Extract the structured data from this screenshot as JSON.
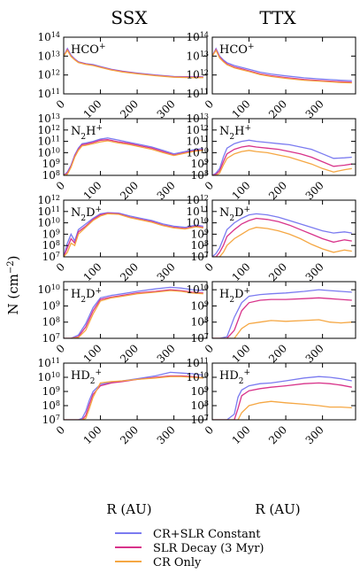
{
  "figure": {
    "column_titles": [
      "SSX",
      "TTX"
    ],
    "ylabel_main": "N (cm",
    "ylabel_exp": "−2",
    "ylabel_close": ")",
    "xlabel": "R (AU)"
  },
  "legend": [
    {
      "label": "CR+SLR Constant",
      "color": "#7b7bf0"
    },
    {
      "label": "SLR Decay (3 Myr)",
      "color": "#d8338a"
    },
    {
      "label": "CR Only",
      "color": "#f5a743"
    }
  ],
  "chart_data": [
    {
      "type": "line",
      "title": "SSX",
      "molecule": "HCO+",
      "label_main": "HCO",
      "label_sub": "",
      "label_sup": "+",
      "x": [
        0,
        10,
        20,
        30,
        40,
        60,
        80,
        100,
        130,
        160,
        200,
        250,
        300,
        350,
        380
      ],
      "xlim": [
        0,
        390
      ],
      "xticks": [
        0,
        100,
        200,
        300
      ],
      "ylim_log10": [
        11,
        14
      ],
      "yticks_log10": [
        11,
        12,
        13,
        14
      ],
      "yscale": "log",
      "series": [
        {
          "name": "CR+SLR Constant",
          "log10_values": [
            13.0,
            13.4,
            13.05,
            12.85,
            12.7,
            12.6,
            12.55,
            12.45,
            12.3,
            12.2,
            12.1,
            12.0,
            11.92,
            11.9,
            11.9
          ]
        },
        {
          "name": "SLR Decay (3 Myr)",
          "log10_values": [
            13.0,
            13.35,
            13.0,
            12.82,
            12.68,
            12.58,
            12.52,
            12.42,
            12.28,
            12.18,
            12.08,
            11.98,
            11.9,
            11.88,
            11.88
          ]
        },
        {
          "name": "CR Only",
          "log10_values": [
            13.0,
            13.3,
            12.98,
            12.8,
            12.66,
            12.56,
            12.5,
            12.4,
            12.26,
            12.16,
            12.06,
            11.96,
            11.88,
            11.86,
            11.86
          ]
        }
      ]
    },
    {
      "type": "line",
      "title": "TTX",
      "molecule": "HCO+",
      "label_main": "HCO",
      "label_sub": "",
      "label_sup": "+",
      "x": [
        0,
        10,
        20,
        30,
        40,
        60,
        80,
        100,
        130,
        160,
        200,
        250,
        300,
        350,
        380
      ],
      "xlim": [
        0,
        390
      ],
      "xticks": [
        0,
        100,
        200,
        300
      ],
      "ylim_log10": [
        11,
        14
      ],
      "yticks_log10": [
        11,
        12,
        13,
        14
      ],
      "yscale": "log",
      "series": [
        {
          "name": "CR+SLR Constant",
          "log10_values": [
            13.0,
            13.4,
            13.0,
            12.8,
            12.65,
            12.5,
            12.4,
            12.3,
            12.15,
            12.05,
            11.95,
            11.85,
            11.78,
            11.72,
            11.7
          ]
        },
        {
          "name": "SLR Decay (3 Myr)",
          "log10_values": [
            13.0,
            13.35,
            12.95,
            12.74,
            12.58,
            12.42,
            12.32,
            12.22,
            12.06,
            11.96,
            11.86,
            11.76,
            11.7,
            11.64,
            11.62
          ]
        },
        {
          "name": "CR Only",
          "log10_values": [
            13.0,
            13.3,
            12.9,
            12.7,
            12.54,
            12.38,
            12.28,
            12.18,
            12.02,
            11.92,
            11.82,
            11.72,
            11.66,
            11.6,
            11.58
          ]
        }
      ]
    },
    {
      "type": "line",
      "title": "SSX",
      "molecule": "N2H+",
      "label_main": "N",
      "label_sub": "2",
      "label_sup": "+",
      "label_after": "H",
      "x": [
        0,
        10,
        20,
        30,
        40,
        50,
        60,
        80,
        100,
        120,
        150,
        180,
        210,
        240,
        270,
        300,
        330,
        360,
        380
      ],
      "xlim": [
        0,
        390
      ],
      "xticks": [
        0,
        100,
        200,
        300
      ],
      "ylim_log10": [
        8,
        13
      ],
      "yticks_log10": [
        8,
        9,
        10,
        11,
        12,
        13
      ],
      "yscale": "log",
      "series": [
        {
          "name": "CR+SLR Constant",
          "log10_values": [
            8.0,
            8.3,
            8.9,
            9.8,
            10.4,
            10.8,
            10.85,
            11.0,
            11.2,
            11.3,
            11.1,
            10.9,
            10.7,
            10.5,
            10.2,
            9.9,
            10.1,
            10.3,
            10.35
          ]
        },
        {
          "name": "SLR Decay (3 Myr)",
          "log10_values": [
            8.0,
            8.2,
            8.8,
            9.7,
            10.3,
            10.7,
            10.75,
            10.9,
            11.1,
            11.15,
            10.95,
            10.8,
            10.6,
            10.4,
            10.1,
            9.8,
            10.0,
            10.2,
            10.25
          ]
        },
        {
          "name": "CR Only",
          "log10_values": [
            8.0,
            8.1,
            8.7,
            9.6,
            10.2,
            10.6,
            10.65,
            10.8,
            10.95,
            11.05,
            10.85,
            10.7,
            10.5,
            10.3,
            10.0,
            9.75,
            9.95,
            10.15,
            10.2
          ]
        }
      ]
    },
    {
      "type": "line",
      "title": "TTX",
      "molecule": "N2H+",
      "label_main": "N",
      "label_sub": "2",
      "label_sup": "+",
      "label_after": "H",
      "x": [
        0,
        10,
        20,
        30,
        40,
        60,
        80,
        100,
        120,
        150,
        180,
        210,
        240,
        270,
        300,
        330,
        360,
        380
      ],
      "xlim": [
        0,
        390
      ],
      "xticks": [
        0,
        100,
        200,
        300
      ],
      "ylim_log10": [
        8,
        13
      ],
      "yticks_log10": [
        8,
        9,
        10,
        11,
        12,
        13
      ],
      "yscale": "log",
      "series": [
        {
          "name": "CR+SLR Constant",
          "log10_values": [
            8.0,
            8.2,
            8.6,
            9.6,
            10.4,
            10.8,
            11.0,
            11.1,
            11.0,
            10.9,
            10.8,
            10.7,
            10.5,
            10.3,
            9.9,
            9.5,
            9.55,
            9.6
          ]
        },
        {
          "name": "SLR Decay (3 Myr)",
          "log10_values": [
            8.0,
            8.1,
            8.4,
            9.2,
            9.9,
            10.3,
            10.5,
            10.6,
            10.5,
            10.4,
            10.3,
            10.1,
            9.9,
            9.6,
            9.2,
            8.8,
            8.9,
            9.0
          ]
        },
        {
          "name": "CR Only",
          "log10_values": [
            8.0,
            8.0,
            8.2,
            8.9,
            9.5,
            9.9,
            10.1,
            10.2,
            10.1,
            10.0,
            9.8,
            9.6,
            9.3,
            9.0,
            8.6,
            8.3,
            8.5,
            8.6
          ]
        }
      ]
    },
    {
      "type": "line",
      "title": "SSX",
      "molecule": "N2D+",
      "label_main": "N",
      "label_sub": "2",
      "label_sup": "+",
      "label_after": "D",
      "x": [
        0,
        10,
        20,
        30,
        40,
        60,
        80,
        100,
        120,
        150,
        180,
        210,
        240,
        270,
        300,
        330,
        360,
        380
      ],
      "xlim": [
        0,
        390
      ],
      "xticks": [
        0,
        100,
        200,
        300
      ],
      "ylim_log10": [
        7,
        12
      ],
      "yticks_log10": [
        7,
        8,
        9,
        10,
        11,
        12
      ],
      "yscale": "log",
      "series": [
        {
          "name": "CR+SLR Constant",
          "log10_values": [
            7.0,
            8.2,
            9.0,
            8.4,
            9.4,
            9.9,
            10.4,
            10.8,
            10.9,
            10.85,
            10.6,
            10.4,
            10.2,
            9.9,
            9.7,
            9.6,
            9.8,
            9.7
          ]
        },
        {
          "name": "SLR Decay (3 Myr)",
          "log10_values": [
            7.0,
            7.8,
            8.6,
            8.2,
            9.2,
            9.7,
            10.3,
            10.7,
            10.85,
            10.8,
            10.5,
            10.3,
            10.1,
            9.8,
            9.6,
            9.5,
            9.7,
            9.6
          ]
        },
        {
          "name": "CR Only",
          "log10_values": [
            7.0,
            7.4,
            8.2,
            8.0,
            9.0,
            9.6,
            10.2,
            10.6,
            10.8,
            10.75,
            10.45,
            10.25,
            10.05,
            9.75,
            9.55,
            9.45,
            9.65,
            9.55
          ]
        }
      ]
    },
    {
      "type": "line",
      "title": "TTX",
      "molecule": "N2D+",
      "label_main": "N",
      "label_sub": "2",
      "label_sup": "+",
      "label_after": "D",
      "x": [
        0,
        10,
        20,
        30,
        40,
        60,
        80,
        100,
        120,
        150,
        180,
        210,
        240,
        270,
        300,
        330,
        360,
        380
      ],
      "xlim": [
        0,
        390
      ],
      "xticks": [
        0,
        100,
        200,
        300
      ],
      "ylim_log10": [
        7,
        12
      ],
      "yticks_log10": [
        7,
        8,
        9,
        10,
        11,
        12
      ],
      "yscale": "log",
      "series": [
        {
          "name": "CR+SLR Constant",
          "log10_values": [
            7.0,
            7.3,
            7.8,
            8.6,
            9.4,
            10.0,
            10.4,
            10.7,
            10.8,
            10.7,
            10.5,
            10.2,
            9.9,
            9.6,
            9.3,
            9.1,
            9.2,
            9.1
          ]
        },
        {
          "name": "SLR Decay (3 Myr)",
          "log10_values": [
            7.0,
            7.0,
            7.4,
            8.0,
            8.8,
            9.4,
            9.9,
            10.2,
            10.4,
            10.3,
            10.1,
            9.8,
            9.4,
            9.0,
            8.6,
            8.3,
            8.5,
            8.4
          ]
        },
        {
          "name": "CR Only",
          "log10_values": [
            7.0,
            7.0,
            7.0,
            7.4,
            8.0,
            8.6,
            9.0,
            9.4,
            9.6,
            9.5,
            9.3,
            9.0,
            8.6,
            8.1,
            7.7,
            7.4,
            7.6,
            7.5
          ]
        }
      ]
    },
    {
      "type": "line",
      "title": "SSX",
      "molecule": "H2D+",
      "label_main": "H",
      "label_sub": "2",
      "label_sup": "+",
      "label_after": "D",
      "x": [
        0,
        20,
        40,
        60,
        80,
        100,
        130,
        160,
        200,
        250,
        290,
        320,
        350,
        380
      ],
      "xlim": [
        0,
        390
      ],
      "xticks": [
        0,
        100,
        200,
        300
      ],
      "ylim_log10": [
        7,
        10.5
      ],
      "yticks_log10": [
        7,
        8,
        9,
        10
      ],
      "yscale": "log",
      "series": [
        {
          "name": "CR+SLR Constant",
          "log10_values": [
            7.0,
            7.0,
            7.2,
            7.9,
            8.9,
            9.5,
            9.65,
            9.75,
            9.9,
            10.05,
            10.15,
            10.1,
            10.0,
            9.95
          ]
        },
        {
          "name": "SLR Decay (3 Myr)",
          "log10_values": [
            7.0,
            7.0,
            7.1,
            7.7,
            8.7,
            9.4,
            9.55,
            9.65,
            9.8,
            9.9,
            10.0,
            9.95,
            9.85,
            9.8
          ]
        },
        {
          "name": "CR Only",
          "log10_values": [
            7.0,
            7.0,
            7.05,
            7.5,
            8.5,
            9.3,
            9.5,
            9.6,
            9.75,
            9.85,
            9.95,
            9.9,
            9.8,
            9.75
          ]
        }
      ]
    },
    {
      "type": "line",
      "title": "TTX",
      "molecule": "H2D+",
      "label_main": "H",
      "label_sub": "2",
      "label_sup": "+",
      "label_after": "D",
      "x": [
        0,
        20,
        40,
        60,
        80,
        100,
        130,
        160,
        200,
        250,
        290,
        320,
        350,
        380
      ],
      "xlim": [
        0,
        390
      ],
      "xticks": [
        0,
        100,
        200,
        300
      ],
      "ylim_log10": [
        7,
        10.5
      ],
      "yticks_log10": [
        7,
        8,
        9,
        10
      ],
      "yscale": "log",
      "series": [
        {
          "name": "CR+SLR Constant",
          "log10_values": [
            7.0,
            7.0,
            7.1,
            8.3,
            9.2,
            9.6,
            9.7,
            9.75,
            9.8,
            9.9,
            10.0,
            9.95,
            9.9,
            9.85
          ]
        },
        {
          "name": "SLR Decay (3 Myr)",
          "log10_values": [
            7.0,
            7.0,
            7.0,
            7.5,
            8.7,
            9.2,
            9.35,
            9.4,
            9.4,
            9.45,
            9.5,
            9.45,
            9.4,
            9.35
          ]
        },
        {
          "name": "CR Only",
          "log10_values": [
            7.0,
            7.0,
            7.0,
            7.0,
            7.6,
            7.9,
            8.0,
            8.1,
            8.05,
            8.1,
            8.15,
            8.0,
            7.95,
            8.0
          ]
        }
      ]
    },
    {
      "type": "line",
      "title": "SSX",
      "molecule": "HD2+",
      "label_main": "HD",
      "label_sub": "2",
      "label_sup": "+",
      "label_after": "",
      "x": [
        0,
        20,
        40,
        50,
        60,
        70,
        80,
        100,
        130,
        160,
        200,
        250,
        290,
        320,
        350,
        380
      ],
      "xlim": [
        0,
        390
      ],
      "xticks": [
        0,
        100,
        200,
        300
      ],
      "ylim_log10": [
        7,
        11
      ],
      "yticks_log10": [
        7,
        8,
        9,
        10,
        11
      ],
      "yscale": "log",
      "series": [
        {
          "name": "CR+SLR Constant",
          "log10_values": [
            7.0,
            7.0,
            7.0,
            7.1,
            7.6,
            8.4,
            9.0,
            9.5,
            9.65,
            9.75,
            9.9,
            10.1,
            10.35,
            10.3,
            10.25,
            10.15
          ]
        },
        {
          "name": "SLR Decay (3 Myr)",
          "log10_values": [
            7.0,
            7.0,
            7.0,
            7.0,
            7.3,
            8.1,
            8.8,
            9.4,
            9.6,
            9.7,
            9.85,
            10.0,
            10.1,
            10.1,
            10.05,
            9.95
          ]
        },
        {
          "name": "CR Only",
          "log10_values": [
            7.0,
            7.0,
            7.0,
            7.0,
            7.1,
            7.8,
            8.6,
            9.6,
            9.7,
            9.75,
            9.85,
            9.95,
            10.05,
            10.05,
            10.0,
            9.95
          ]
        }
      ]
    },
    {
      "type": "line",
      "title": "TTX",
      "molecule": "HD2+",
      "label_main": "HD",
      "label_sub": "2",
      "label_sup": "+",
      "label_after": "",
      "x": [
        0,
        20,
        40,
        60,
        70,
        80,
        100,
        130,
        160,
        200,
        250,
        290,
        320,
        350,
        380
      ],
      "xlim": [
        0,
        390
      ],
      "xticks": [
        0,
        100,
        200,
        300
      ],
      "ylim_log10": [
        7,
        11
      ],
      "yticks_log10": [
        7,
        8,
        9,
        10,
        11
      ],
      "yscale": "log",
      "series": [
        {
          "name": "CR+SLR Constant",
          "log10_values": [
            7.0,
            7.0,
            7.0,
            7.4,
            8.6,
            9.1,
            9.4,
            9.55,
            9.6,
            9.75,
            9.95,
            10.05,
            10.0,
            9.9,
            9.75
          ]
        },
        {
          "name": "SLR Decay (3 Myr)",
          "log10_values": [
            7.0,
            7.0,
            7.0,
            7.0,
            7.8,
            8.7,
            9.05,
            9.2,
            9.3,
            9.4,
            9.55,
            9.6,
            9.55,
            9.45,
            9.3
          ]
        },
        {
          "name": "CR Only",
          "log10_values": [
            7.0,
            7.0,
            7.0,
            7.0,
            7.0,
            7.5,
            8.0,
            8.2,
            8.3,
            8.2,
            8.1,
            8.0,
            7.9,
            7.9,
            7.85
          ]
        }
      ]
    }
  ]
}
